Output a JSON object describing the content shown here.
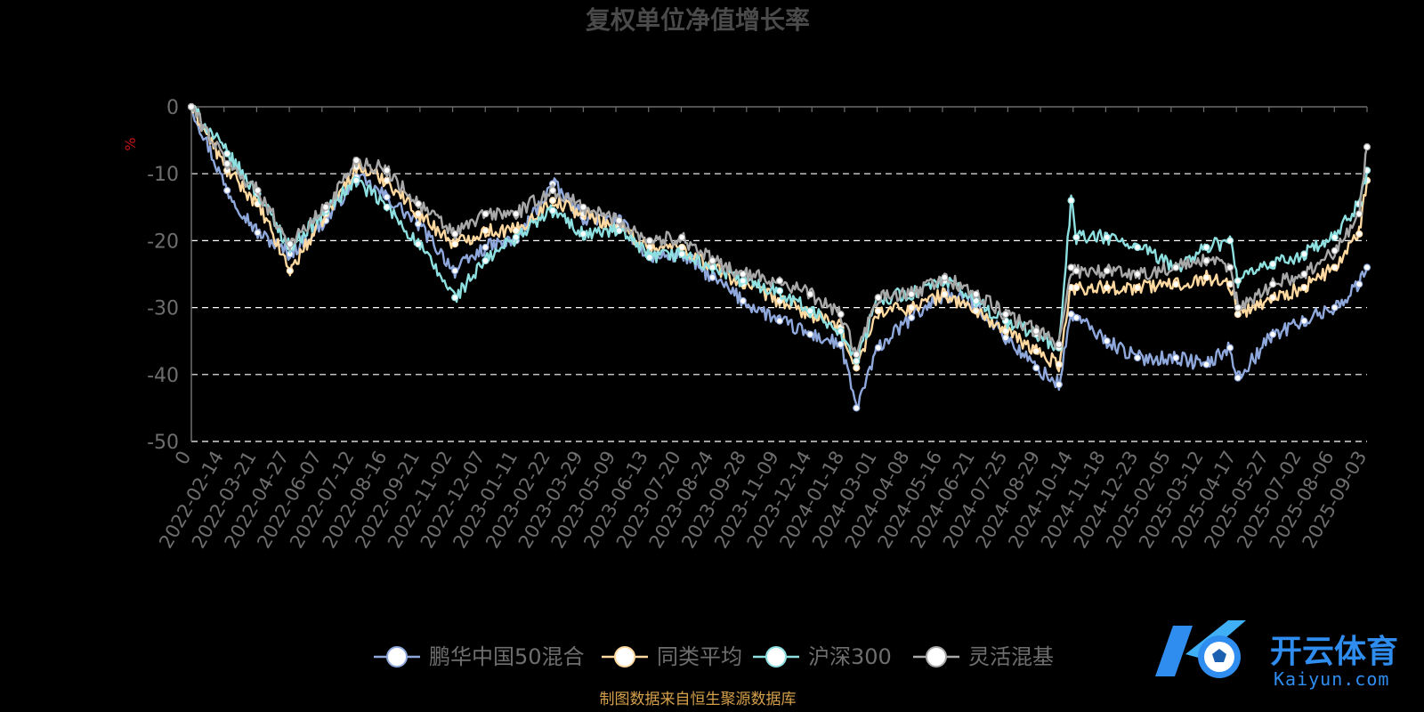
{
  "chart_data": {
    "type": "line",
    "title": "复权单位净值增长率",
    "ylabel": "%",
    "ylim": [
      -50,
      0
    ],
    "y_ticks": [
      0,
      -10,
      -20,
      -30,
      -40,
      -50
    ],
    "grid": true,
    "legend_position": "bottom",
    "x_range": [
      "2022-01-04",
      "2025-09-12"
    ],
    "x_tick_labels": [
      "0",
      "2022-02-14",
      "2022-03-21",
      "2022-04-27",
      "2022-06-07",
      "2022-07-12",
      "2022-08-16",
      "2022-09-21",
      "2022-11-02",
      "2022-12-07",
      "2023-01-11",
      "2023-02-22",
      "2023-03-29",
      "2023-05-09",
      "2023-06-13",
      "2023-07-20",
      "2023-08-24",
      "2023-09-28",
      "2023-11-09",
      "2023-12-14",
      "2024-01-18",
      "2024-03-01",
      "2024-04-08",
      "2024-05-16",
      "2024-06-21",
      "2024-07-25",
      "2024-08-29",
      "2024-10-14",
      "2024-11-18",
      "2024-12-23",
      "2025-02-05",
      "2025-03-12",
      "2025-04-17",
      "2025-05-27",
      "2025-07-02",
      "2025-08-06",
      "2025-09-03"
    ],
    "dates": [
      "2022-01-04",
      "2022-02-14",
      "2022-03-21",
      "2022-04-27",
      "2022-06-07",
      "2022-07-12",
      "2022-08-16",
      "2022-09-21",
      "2022-11-02",
      "2022-12-07",
      "2023-01-11",
      "2023-02-22",
      "2023-03-29",
      "2023-05-09",
      "2023-06-13",
      "2023-07-20",
      "2023-08-24",
      "2023-09-28",
      "2023-11-09",
      "2023-12-14",
      "2024-01-18",
      "2024-02-05",
      "2024-03-01",
      "2024-04-08",
      "2024-05-16",
      "2024-06-21",
      "2024-07-25",
      "2024-08-29",
      "2024-09-24",
      "2024-10-08",
      "2024-10-14",
      "2024-11-18",
      "2024-12-23",
      "2025-02-05",
      "2025-03-12",
      "2025-04-08",
      "2025-04-17",
      "2025-05-27",
      "2025-07-02",
      "2025-08-06",
      "2025-09-03",
      "2025-09-12"
    ],
    "series": [
      {
        "name": "鹏华中国50混合",
        "color": "#8fa8dc",
        "values": [
          0,
          -12.5,
          -18.8,
          -22.0,
          -17.0,
          -10.5,
          -13.5,
          -17.5,
          -24.5,
          -21.0,
          -20.0,
          -11.5,
          -16.5,
          -17.0,
          -22.5,
          -22.0,
          -25.5,
          -29.0,
          -32.0,
          -34.0,
          -35.5,
          -45.0,
          -36.0,
          -31.5,
          -28.0,
          -29.5,
          -34.5,
          -39.0,
          -41.5,
          -31.0,
          -31.5,
          -35.0,
          -37.5,
          -37.5,
          -38.5,
          -36.0,
          -40.5,
          -34.0,
          -32.0,
          -30.0,
          -26.5,
          -24.0
        ]
      },
      {
        "name": "同类平均",
        "color": "#ffd9a0",
        "values": [
          0,
          -9.5,
          -14.5,
          -24.5,
          -16.0,
          -9.0,
          -11.0,
          -16.0,
          -20.5,
          -18.5,
          -18.5,
          -14.0,
          -16.0,
          -18.0,
          -21.0,
          -21.0,
          -24.0,
          -26.5,
          -29.0,
          -31.0,
          -33.0,
          -39.0,
          -30.5,
          -30.0,
          -28.0,
          -30.5,
          -33.5,
          -36.5,
          -38.5,
          -27.0,
          -27.0,
          -27.0,
          -27.0,
          -26.5,
          -25.5,
          -26.5,
          -31.0,
          -28.5,
          -27.0,
          -24.0,
          -19.0,
          -11.0
        ]
      },
      {
        "name": "沪深300",
        "color": "#8ee0e0",
        "values": [
          0,
          -7.0,
          -13.0,
          -21.0,
          -15.5,
          -11.0,
          -15.0,
          -20.5,
          -28.5,
          -23.0,
          -19.5,
          -15.5,
          -19.0,
          -18.5,
          -22.5,
          -22.0,
          -24.0,
          -26.0,
          -27.5,
          -30.5,
          -33.5,
          -38.0,
          -28.5,
          -28.0,
          -26.0,
          -29.0,
          -32.0,
          -34.0,
          -36.0,
          -14.0,
          -19.5,
          -19.5,
          -21.0,
          -24.0,
          -21.0,
          -20.0,
          -26.0,
          -23.5,
          -22.0,
          -19.5,
          -14.5,
          -9.5
        ]
      },
      {
        "name": "灵活混基",
        "color": "#a8a8a8",
        "values": [
          0,
          -8.5,
          -12.5,
          -20.5,
          -15.0,
          -8.0,
          -9.5,
          -14.5,
          -19.0,
          -16.0,
          -16.0,
          -12.5,
          -15.0,
          -17.0,
          -20.0,
          -19.5,
          -23.0,
          -25.0,
          -26.0,
          -28.0,
          -31.0,
          -37.0,
          -28.5,
          -28.0,
          -25.5,
          -28.0,
          -31.0,
          -33.5,
          -35.5,
          -24.0,
          -24.5,
          -24.5,
          -25.0,
          -24.0,
          -23.0,
          -24.0,
          -30.0,
          -26.5,
          -25.0,
          -21.5,
          -16.0,
          -6.0
        ]
      }
    ],
    "source_note": "制图数据来自恒生聚源数据库"
  },
  "watermark": {
    "main": "开云体育",
    "sub": "Kaiyun.com"
  }
}
